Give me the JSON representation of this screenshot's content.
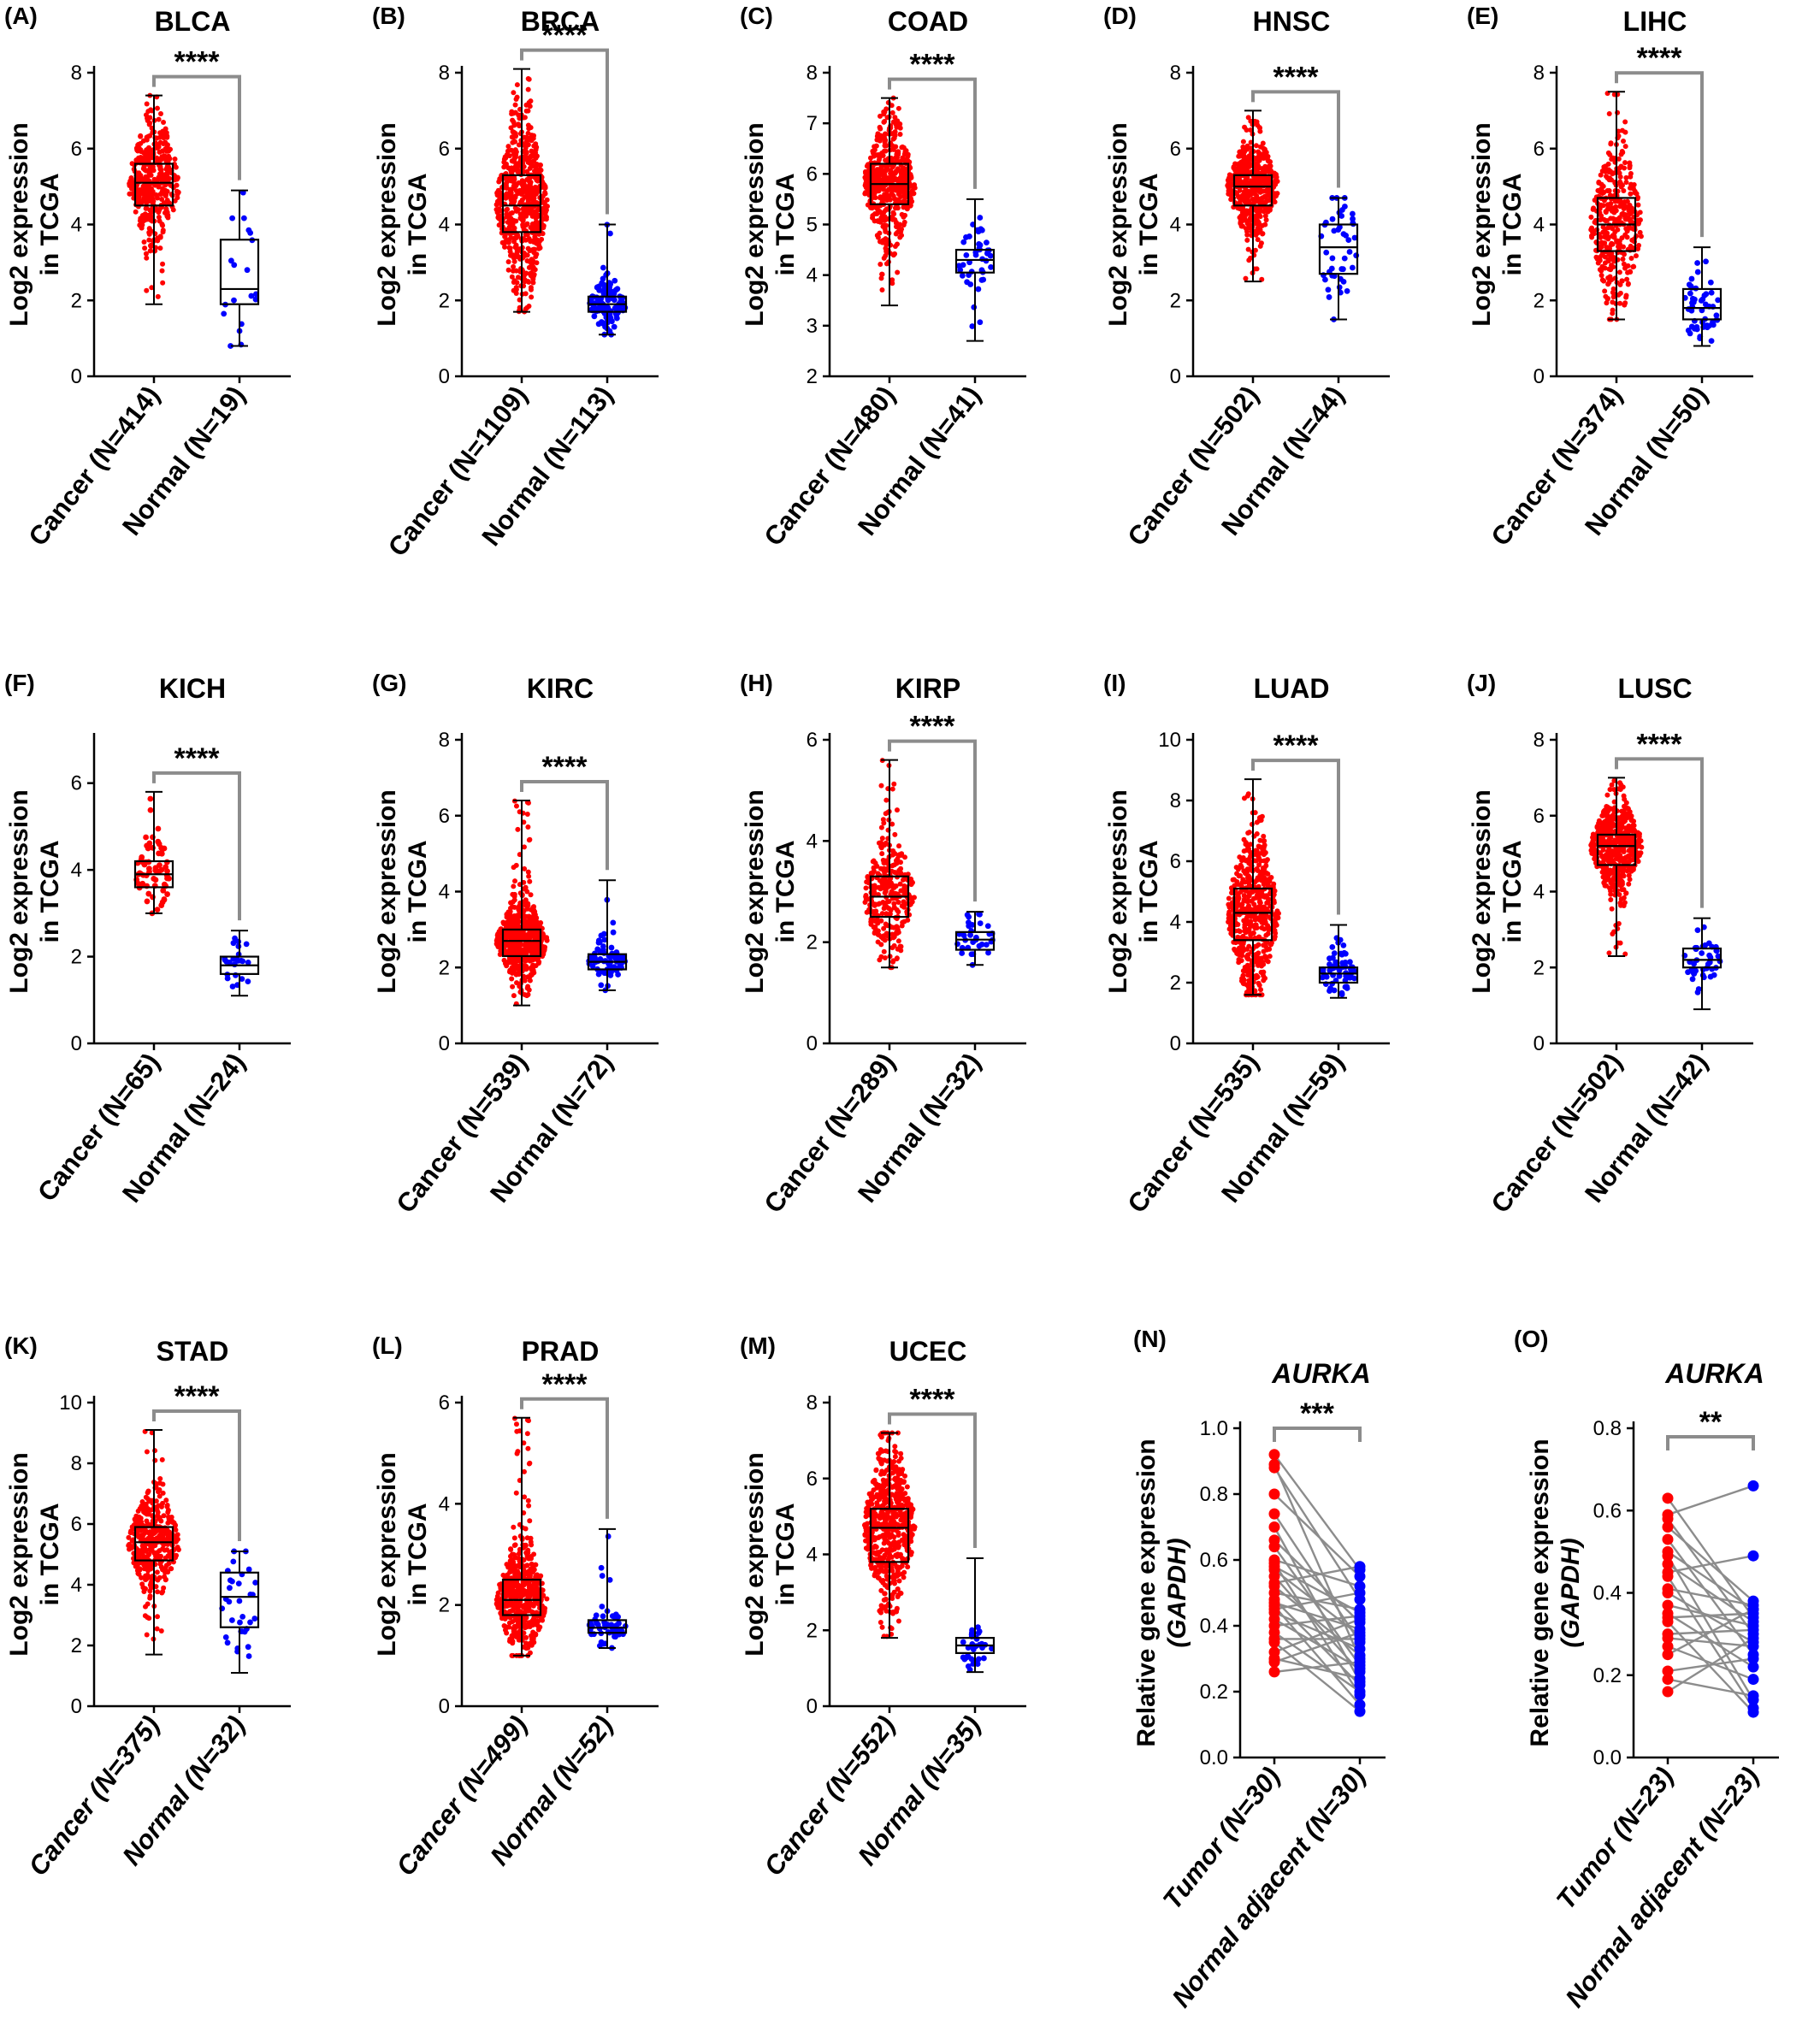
{
  "figure": {
    "colors": {
      "cancer": "#ff0000",
      "normal": "#0000ff",
      "bracket": "#8c8c8c",
      "pair_line": "#8c8c8c",
      "axis": "#000000"
    }
  },
  "chart_data": [
    {
      "id": "A",
      "letter": "(A)",
      "title": "BLCA",
      "type": "box",
      "ylabel_lines": [
        "Log2 expression",
        "in TCGA"
      ],
      "ylim": [
        0,
        8
      ],
      "yticks": [
        "0",
        "2",
        "4",
        "6",
        "8"
      ],
      "sig": "****",
      "groups": [
        {
          "label": "Cancer (N=414)",
          "n": 414,
          "color": "cancer",
          "min": 1.9,
          "q1": 4.5,
          "median": 5.1,
          "q3": 5.6,
          "max": 7.4
        },
        {
          "label": "Normal (N=19)",
          "n": 19,
          "color": "normal",
          "min": 0.8,
          "q1": 1.9,
          "median": 2.3,
          "q3": 3.6,
          "max": 4.9
        }
      ]
    },
    {
      "id": "B",
      "letter": "(B)",
      "title": "BRCA",
      "type": "box",
      "ylabel_lines": [
        "Log2 expression",
        "in TCGA"
      ],
      "ylim": [
        0,
        8
      ],
      "yticks": [
        "0",
        "2",
        "4",
        "6",
        "8"
      ],
      "sig": "****",
      "groups": [
        {
          "label": "Cancer (N=1109)",
          "n": 1109,
          "color": "cancer",
          "min": 1.7,
          "q1": 3.8,
          "median": 4.5,
          "q3": 5.3,
          "max": 8.1
        },
        {
          "label": "Normal (N=113)",
          "n": 113,
          "color": "normal",
          "min": 1.1,
          "q1": 1.7,
          "median": 1.9,
          "q3": 2.1,
          "max": 4.0
        }
      ]
    },
    {
      "id": "C",
      "letter": "(C)",
      "title": "COAD",
      "type": "box",
      "ylabel_lines": [
        "Log2 expression",
        "in TCGA"
      ],
      "ylim": [
        2,
        8
      ],
      "yticks": [
        "2",
        "3",
        "4",
        "5",
        "6",
        "7",
        "8"
      ],
      "sig": "****",
      "groups": [
        {
          "label": "Cancer (N=480)",
          "n": 480,
          "color": "cancer",
          "min": 3.4,
          "q1": 5.4,
          "median": 5.8,
          "q3": 6.2,
          "max": 7.5
        },
        {
          "label": "Normal (N=41)",
          "n": 41,
          "color": "normal",
          "min": 2.7,
          "q1": 4.05,
          "median": 4.3,
          "q3": 4.5,
          "max": 5.5
        }
      ]
    },
    {
      "id": "D",
      "letter": "(D)",
      "title": "HNSC",
      "type": "box",
      "ylabel_lines": [
        "Log2 expression",
        "in TCGA"
      ],
      "ylim": [
        0,
        8
      ],
      "yticks": [
        "0",
        "2",
        "4",
        "6",
        "8"
      ],
      "sig": "****",
      "groups": [
        {
          "label": "Cancer (N=502)",
          "n": 502,
          "color": "cancer",
          "min": 2.5,
          "q1": 4.5,
          "median": 5.0,
          "q3": 5.3,
          "max": 7.0
        },
        {
          "label": "Normal (N=44)",
          "n": 44,
          "color": "normal",
          "min": 1.5,
          "q1": 2.7,
          "median": 3.4,
          "q3": 4.0,
          "max": 4.7
        }
      ]
    },
    {
      "id": "E",
      "letter": "(E)",
      "title": "LIHC",
      "type": "box",
      "ylabel_lines": [
        "Log2 expression",
        "in TCGA"
      ],
      "ylim": [
        0,
        8
      ],
      "yticks": [
        "0",
        "2",
        "4",
        "6",
        "8"
      ],
      "sig": "****",
      "groups": [
        {
          "label": "Cancer (N=374)",
          "n": 374,
          "color": "cancer",
          "min": 1.5,
          "q1": 3.3,
          "median": 4.0,
          "q3": 4.7,
          "max": 7.5
        },
        {
          "label": "Normal (N=50)",
          "n": 50,
          "color": "normal",
          "min": 0.8,
          "q1": 1.5,
          "median": 1.8,
          "q3": 2.3,
          "max": 3.4
        }
      ]
    },
    {
      "id": "F",
      "letter": "(F)",
      "title": "KICH",
      "type": "box",
      "ylabel_lines": [
        "Log2 expression",
        "in TCGA"
      ],
      "ylim": [
        0,
        7
      ],
      "yticks": [
        "0",
        "2",
        "4",
        "6"
      ],
      "sig": "****",
      "groups": [
        {
          "label": "Cancer (N=65)",
          "n": 65,
          "color": "cancer",
          "min": 3.0,
          "q1": 3.6,
          "median": 3.9,
          "q3": 4.2,
          "max": 5.8
        },
        {
          "label": "Normal (N=24)",
          "n": 24,
          "color": "normal",
          "min": 1.1,
          "q1": 1.6,
          "median": 1.8,
          "q3": 2.0,
          "max": 2.6
        }
      ]
    },
    {
      "id": "G",
      "letter": "(G)",
      "title": "KIRC",
      "type": "box",
      "ylabel_lines": [
        "Log2 expression",
        "in TCGA"
      ],
      "ylim": [
        0,
        8
      ],
      "yticks": [
        "0",
        "2",
        "4",
        "6",
        "8"
      ],
      "sig": "****",
      "groups": [
        {
          "label": "Cancer (N=539)",
          "n": 539,
          "color": "cancer",
          "min": 1.0,
          "q1": 2.3,
          "median": 2.7,
          "q3": 3.0,
          "max": 6.4
        },
        {
          "label": "Normal (N=72)",
          "n": 72,
          "color": "normal",
          "min": 1.4,
          "q1": 1.95,
          "median": 2.15,
          "q3": 2.35,
          "max": 4.3
        }
      ]
    },
    {
      "id": "H",
      "letter": "(H)",
      "title": "KIRP",
      "type": "box",
      "ylabel_lines": [
        "Log2 expression",
        "in TCGA"
      ],
      "ylim": [
        0,
        6
      ],
      "yticks": [
        "0",
        "2",
        "4",
        "6"
      ],
      "sig": "****",
      "groups": [
        {
          "label": "Cancer (N=289)",
          "n": 289,
          "color": "cancer",
          "min": 1.5,
          "q1": 2.5,
          "median": 2.9,
          "q3": 3.3,
          "max": 5.6
        },
        {
          "label": "Normal (N=32)",
          "n": 32,
          "color": "normal",
          "min": 1.55,
          "q1": 1.85,
          "median": 2.05,
          "q3": 2.2,
          "max": 2.6
        }
      ]
    },
    {
      "id": "I",
      "letter": "(I)",
      "title": "LUAD",
      "type": "box",
      "ylabel_lines": [
        "Log2 expression",
        "in TCGA"
      ],
      "ylim": [
        0,
        10
      ],
      "yticks": [
        "0",
        "2",
        "4",
        "6",
        "8",
        "10"
      ],
      "sig": "****",
      "groups": [
        {
          "label": "Cancer (N=535)",
          "n": 535,
          "color": "cancer",
          "min": 1.6,
          "q1": 3.4,
          "median": 4.3,
          "q3": 5.1,
          "max": 8.7
        },
        {
          "label": "Normal (N=59)",
          "n": 59,
          "color": "normal",
          "min": 1.5,
          "q1": 2.0,
          "median": 2.3,
          "q3": 2.5,
          "max": 3.9
        }
      ]
    },
    {
      "id": "J",
      "letter": "(J)",
      "title": "LUSC",
      "type": "box",
      "ylabel_lines": [
        "Log2 expression",
        "in TCGA"
      ],
      "ylim": [
        0,
        8
      ],
      "yticks": [
        "0",
        "2",
        "4",
        "6",
        "8"
      ],
      "sig": "****",
      "groups": [
        {
          "label": "Cancer (N=502)",
          "n": 502,
          "color": "cancer",
          "min": 2.3,
          "q1": 4.7,
          "median": 5.2,
          "q3": 5.5,
          "max": 7.0
        },
        {
          "label": "Normal (N=42)",
          "n": 42,
          "color": "normal",
          "min": 0.9,
          "q1": 2.0,
          "median": 2.2,
          "q3": 2.5,
          "max": 3.3
        }
      ]
    },
    {
      "id": "K",
      "letter": "(K)",
      "title": "STAD",
      "type": "box",
      "ylabel_lines": [
        "Log2 expression",
        "in TCGA"
      ],
      "ylim": [
        0,
        10
      ],
      "yticks": [
        "0",
        "2",
        "4",
        "6",
        "8",
        "10"
      ],
      "sig": "****",
      "italic_categories": true,
      "groups": [
        {
          "label": "Cancer (N=375)",
          "n": 375,
          "color": "cancer",
          "min": 1.7,
          "q1": 4.8,
          "median": 5.4,
          "q3": 5.9,
          "max": 9.1
        },
        {
          "label": "Normal (N=32)",
          "n": 32,
          "color": "normal",
          "min": 1.1,
          "q1": 2.6,
          "median": 3.6,
          "q3": 4.4,
          "max": 5.1
        }
      ]
    },
    {
      "id": "L",
      "letter": "(L)",
      "title": "PRAD",
      "type": "box",
      "ylabel_lines": [
        "Log2 expression",
        "in TCGA"
      ],
      "ylim": [
        0,
        6
      ],
      "yticks": [
        "0",
        "2",
        "4",
        "6"
      ],
      "sig": "****",
      "italic_categories": true,
      "groups": [
        {
          "label": "Cancer (N=499)",
          "n": 499,
          "color": "cancer",
          "min": 1.0,
          "q1": 1.8,
          "median": 2.1,
          "q3": 2.5,
          "max": 5.7
        },
        {
          "label": "Normal (N=52)",
          "n": 52,
          "color": "normal",
          "min": 1.15,
          "q1": 1.45,
          "median": 1.55,
          "q3": 1.7,
          "max": 3.5
        }
      ]
    },
    {
      "id": "M",
      "letter": "(M)",
      "title": "UCEC",
      "type": "box",
      "ylabel_lines": [
        "Log2 expression",
        "in TCGA"
      ],
      "ylim": [
        0,
        8
      ],
      "yticks": [
        "0",
        "2",
        "4",
        "6",
        "8"
      ],
      "sig": "****",
      "italic_categories": true,
      "groups": [
        {
          "label": "Cancer (N=552)",
          "n": 552,
          "color": "cancer",
          "min": 1.8,
          "q1": 3.8,
          "median": 4.7,
          "q3": 5.2,
          "max": 7.2
        },
        {
          "label": "Normal (N=35)",
          "n": 35,
          "color": "normal",
          "min": 0.9,
          "q1": 1.4,
          "median": 1.6,
          "q3": 1.8,
          "max": 3.9
        }
      ]
    },
    {
      "id": "N",
      "letter": "(N)",
      "title": "AURKA",
      "type": "paired",
      "ylabel_lines": [
        "Relative gene expression",
        "(GAPDH)"
      ],
      "ylim": [
        0,
        1.0
      ],
      "yticks": [
        "0.0",
        "0.2",
        "0.4",
        "0.6",
        "0.8",
        "1.0"
      ],
      "sig": "***",
      "categories": [
        "Tumor (N=30)",
        "Normal adjacent (N=30)"
      ],
      "tumor": [
        0.92,
        0.89,
        0.88,
        0.8,
        0.74,
        0.7,
        0.66,
        0.64,
        0.6,
        0.59,
        0.58,
        0.57,
        0.55,
        0.53,
        0.52,
        0.5,
        0.48,
        0.47,
        0.46,
        0.45,
        0.44,
        0.42,
        0.4,
        0.38,
        0.36,
        0.35,
        0.32,
        0.3,
        0.29,
        0.26
      ],
      "normal": [
        0.57,
        0.3,
        0.48,
        0.55,
        0.35,
        0.23,
        0.41,
        0.28,
        0.52,
        0.19,
        0.44,
        0.37,
        0.26,
        0.58,
        0.31,
        0.45,
        0.22,
        0.39,
        0.16,
        0.5,
        0.33,
        0.27,
        0.43,
        0.2,
        0.36,
        0.14,
        0.42,
        0.24,
        0.38,
        0.29
      ]
    },
    {
      "id": "O",
      "letter": "(O)",
      "title": "AURKA",
      "type": "paired",
      "ylabel_lines": [
        "Relative gene expression",
        "(GAPDH)"
      ],
      "ylim": [
        0,
        0.8
      ],
      "yticks": [
        "0.0",
        "0.2",
        "0.4",
        "0.6",
        "0.8"
      ],
      "sig": "**",
      "categories": [
        "Tumor (N=23)",
        "Normal adjacent (N=23)"
      ],
      "tumor": [
        0.63,
        0.59,
        0.58,
        0.56,
        0.53,
        0.5,
        0.49,
        0.47,
        0.45,
        0.44,
        0.41,
        0.4,
        0.37,
        0.35,
        0.34,
        0.33,
        0.3,
        0.29,
        0.27,
        0.25,
        0.21,
        0.19,
        0.16
      ],
      "normal": [
        0.34,
        0.66,
        0.3,
        0.38,
        0.25,
        0.36,
        0.14,
        0.33,
        0.49,
        0.12,
        0.37,
        0.28,
        0.32,
        0.22,
        0.35,
        0.11,
        0.31,
        0.27,
        0.19,
        0.36,
        0.24,
        0.15,
        0.29
      ]
    }
  ]
}
